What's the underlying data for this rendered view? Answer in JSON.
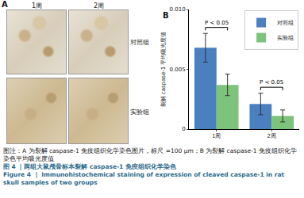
{
  "panel_a": {
    "label": "A",
    "columns": [
      "1周",
      "2周"
    ],
    "rows": [
      "对照组",
      "实验组"
    ]
  },
  "chart_data": {
    "label": "B",
    "type": "bar",
    "y_label": "裂解 caspase-1 平均吸光度值",
    "categories": [
      "1周",
      "2周"
    ],
    "series": [
      {
        "name": "对照组",
        "color": "#4a7fc0",
        "values": [
          0.0068,
          0.0021
        ],
        "error": [
          0.0012,
          0.0009
        ]
      },
      {
        "name": "实验组",
        "color": "#7dc47a",
        "values": [
          0.0037,
          0.0011
        ],
        "error": [
          0.0009,
          0.0005
        ]
      }
    ],
    "ylim": [
      0,
      0.01
    ],
    "yticks": [
      0,
      0.005,
      {
        "value": 0.01,
        "label": "0.010"
      }
    ],
    "legend": "upper right",
    "annotations": [
      {
        "text": "P < 0.05",
        "category": "1周"
      },
      {
        "text": "P < 0.05",
        "category": "2周"
      }
    ]
  },
  "caption": {
    "note": "图注：A 为裂解 caspase-1 免疫组织化学染色图片，标尺 =100 μm；B 为裂解 caspase-1 免疫组织化学染色平均吸光度值",
    "title_cn": "图 4 ｜两组大鼠颅骨标本裂解 caspase-1 免疫组织化学染色",
    "title_en": "Figure 4 ｜ Immunohistochemical staining of expression of cleaved caspase-1 in rat skull samples of two groups"
  }
}
